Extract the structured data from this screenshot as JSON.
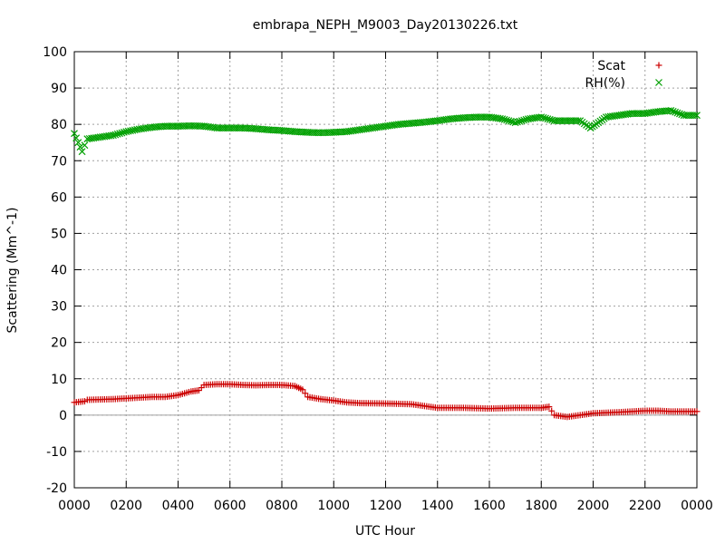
{
  "chart_data": {
    "type": "scatter",
    "title": "embrapa_NEPH_M9003_Day20130226.txt",
    "xlabel": "UTC Hour",
    "ylabel": "Scattering (Mm^-1)",
    "xlim": [
      0,
      24
    ],
    "ylim": [
      -20,
      100
    ],
    "grid": true,
    "legend_position": "top-right",
    "xticks": [
      {
        "value": 0,
        "label": "0000"
      },
      {
        "value": 2,
        "label": "0200"
      },
      {
        "value": 4,
        "label": "0400"
      },
      {
        "value": 6,
        "label": "0600"
      },
      {
        "value": 8,
        "label": "0800"
      },
      {
        "value": 10,
        "label": "1000"
      },
      {
        "value": 12,
        "label": "1200"
      },
      {
        "value": 14,
        "label": "1400"
      },
      {
        "value": 16,
        "label": "1600"
      },
      {
        "value": 18,
        "label": "1800"
      },
      {
        "value": 20,
        "label": "2000"
      },
      {
        "value": 22,
        "label": "2200"
      },
      {
        "value": 24,
        "label": "0000"
      }
    ],
    "yticks": [
      -20,
      -10,
      0,
      10,
      20,
      30,
      40,
      50,
      60,
      70,
      80,
      90,
      100
    ],
    "zero_line": 0,
    "series": [
      {
        "name": "Scat",
        "marker": "plus",
        "color": "#cc0000",
        "x": [
          0.0,
          0.4,
          0.5,
          1.0,
          1.5,
          2.0,
          2.5,
          3.0,
          3.5,
          4.0,
          4.5,
          4.8,
          5.0,
          5.5,
          6.0,
          6.5,
          7.0,
          7.5,
          8.0,
          8.5,
          8.8,
          9.0,
          9.5,
          10.0,
          10.5,
          11.0,
          12.0,
          13.0,
          13.5,
          14.0,
          15.0,
          16.0,
          17.0,
          18.0,
          18.3,
          18.5,
          19.0,
          19.5,
          20.0,
          21.0,
          21.5,
          22.0,
          22.5,
          23.0,
          23.5,
          24.0
        ],
        "y": [
          3.5,
          3.8,
          4.2,
          4.3,
          4.4,
          4.6,
          4.8,
          5.0,
          5.0,
          5.5,
          6.5,
          6.8,
          8.3,
          8.5,
          8.5,
          8.3,
          8.2,
          8.3,
          8.3,
          8.0,
          7.0,
          5.0,
          4.4,
          4.0,
          3.5,
          3.3,
          3.2,
          3.0,
          2.5,
          2.0,
          2.0,
          1.8,
          2.0,
          2.0,
          2.3,
          0.0,
          -0.5,
          0.0,
          0.5,
          0.8,
          1.0,
          1.2,
          1.2,
          1.0,
          1.0,
          1.0
        ]
      },
      {
        "name": "RH(%)",
        "marker": "cross",
        "color": "#00a000",
        "x": [
          0.0,
          0.3,
          0.5,
          1.0,
          1.5,
          2.0,
          2.5,
          3.0,
          3.5,
          4.0,
          4.5,
          5.0,
          5.5,
          6.0,
          6.5,
          7.0,
          7.5,
          8.0,
          8.5,
          9.0,
          9.5,
          10.0,
          10.5,
          11.0,
          11.5,
          12.0,
          12.5,
          13.0,
          13.5,
          14.0,
          14.5,
          15.0,
          15.5,
          16.0,
          16.5,
          17.0,
          17.5,
          18.0,
          18.5,
          19.0,
          19.5,
          19.9,
          20.2,
          20.5,
          21.0,
          21.5,
          22.0,
          22.5,
          23.0,
          23.5,
          24.0
        ],
        "y": [
          77.5,
          72.5,
          76.0,
          76.5,
          77.0,
          78.0,
          78.7,
          79.2,
          79.5,
          79.5,
          79.6,
          79.5,
          79.0,
          79.0,
          79.0,
          78.8,
          78.5,
          78.3,
          78.0,
          77.8,
          77.7,
          77.8,
          78.0,
          78.5,
          79.0,
          79.5,
          80.0,
          80.3,
          80.6,
          81.0,
          81.5,
          81.8,
          82.0,
          82.0,
          81.5,
          80.5,
          81.5,
          82.0,
          81.0,
          81.0,
          81.0,
          79.0,
          80.5,
          82.0,
          82.5,
          83.0,
          83.0,
          83.5,
          83.8,
          82.5,
          82.5
        ]
      }
    ]
  }
}
